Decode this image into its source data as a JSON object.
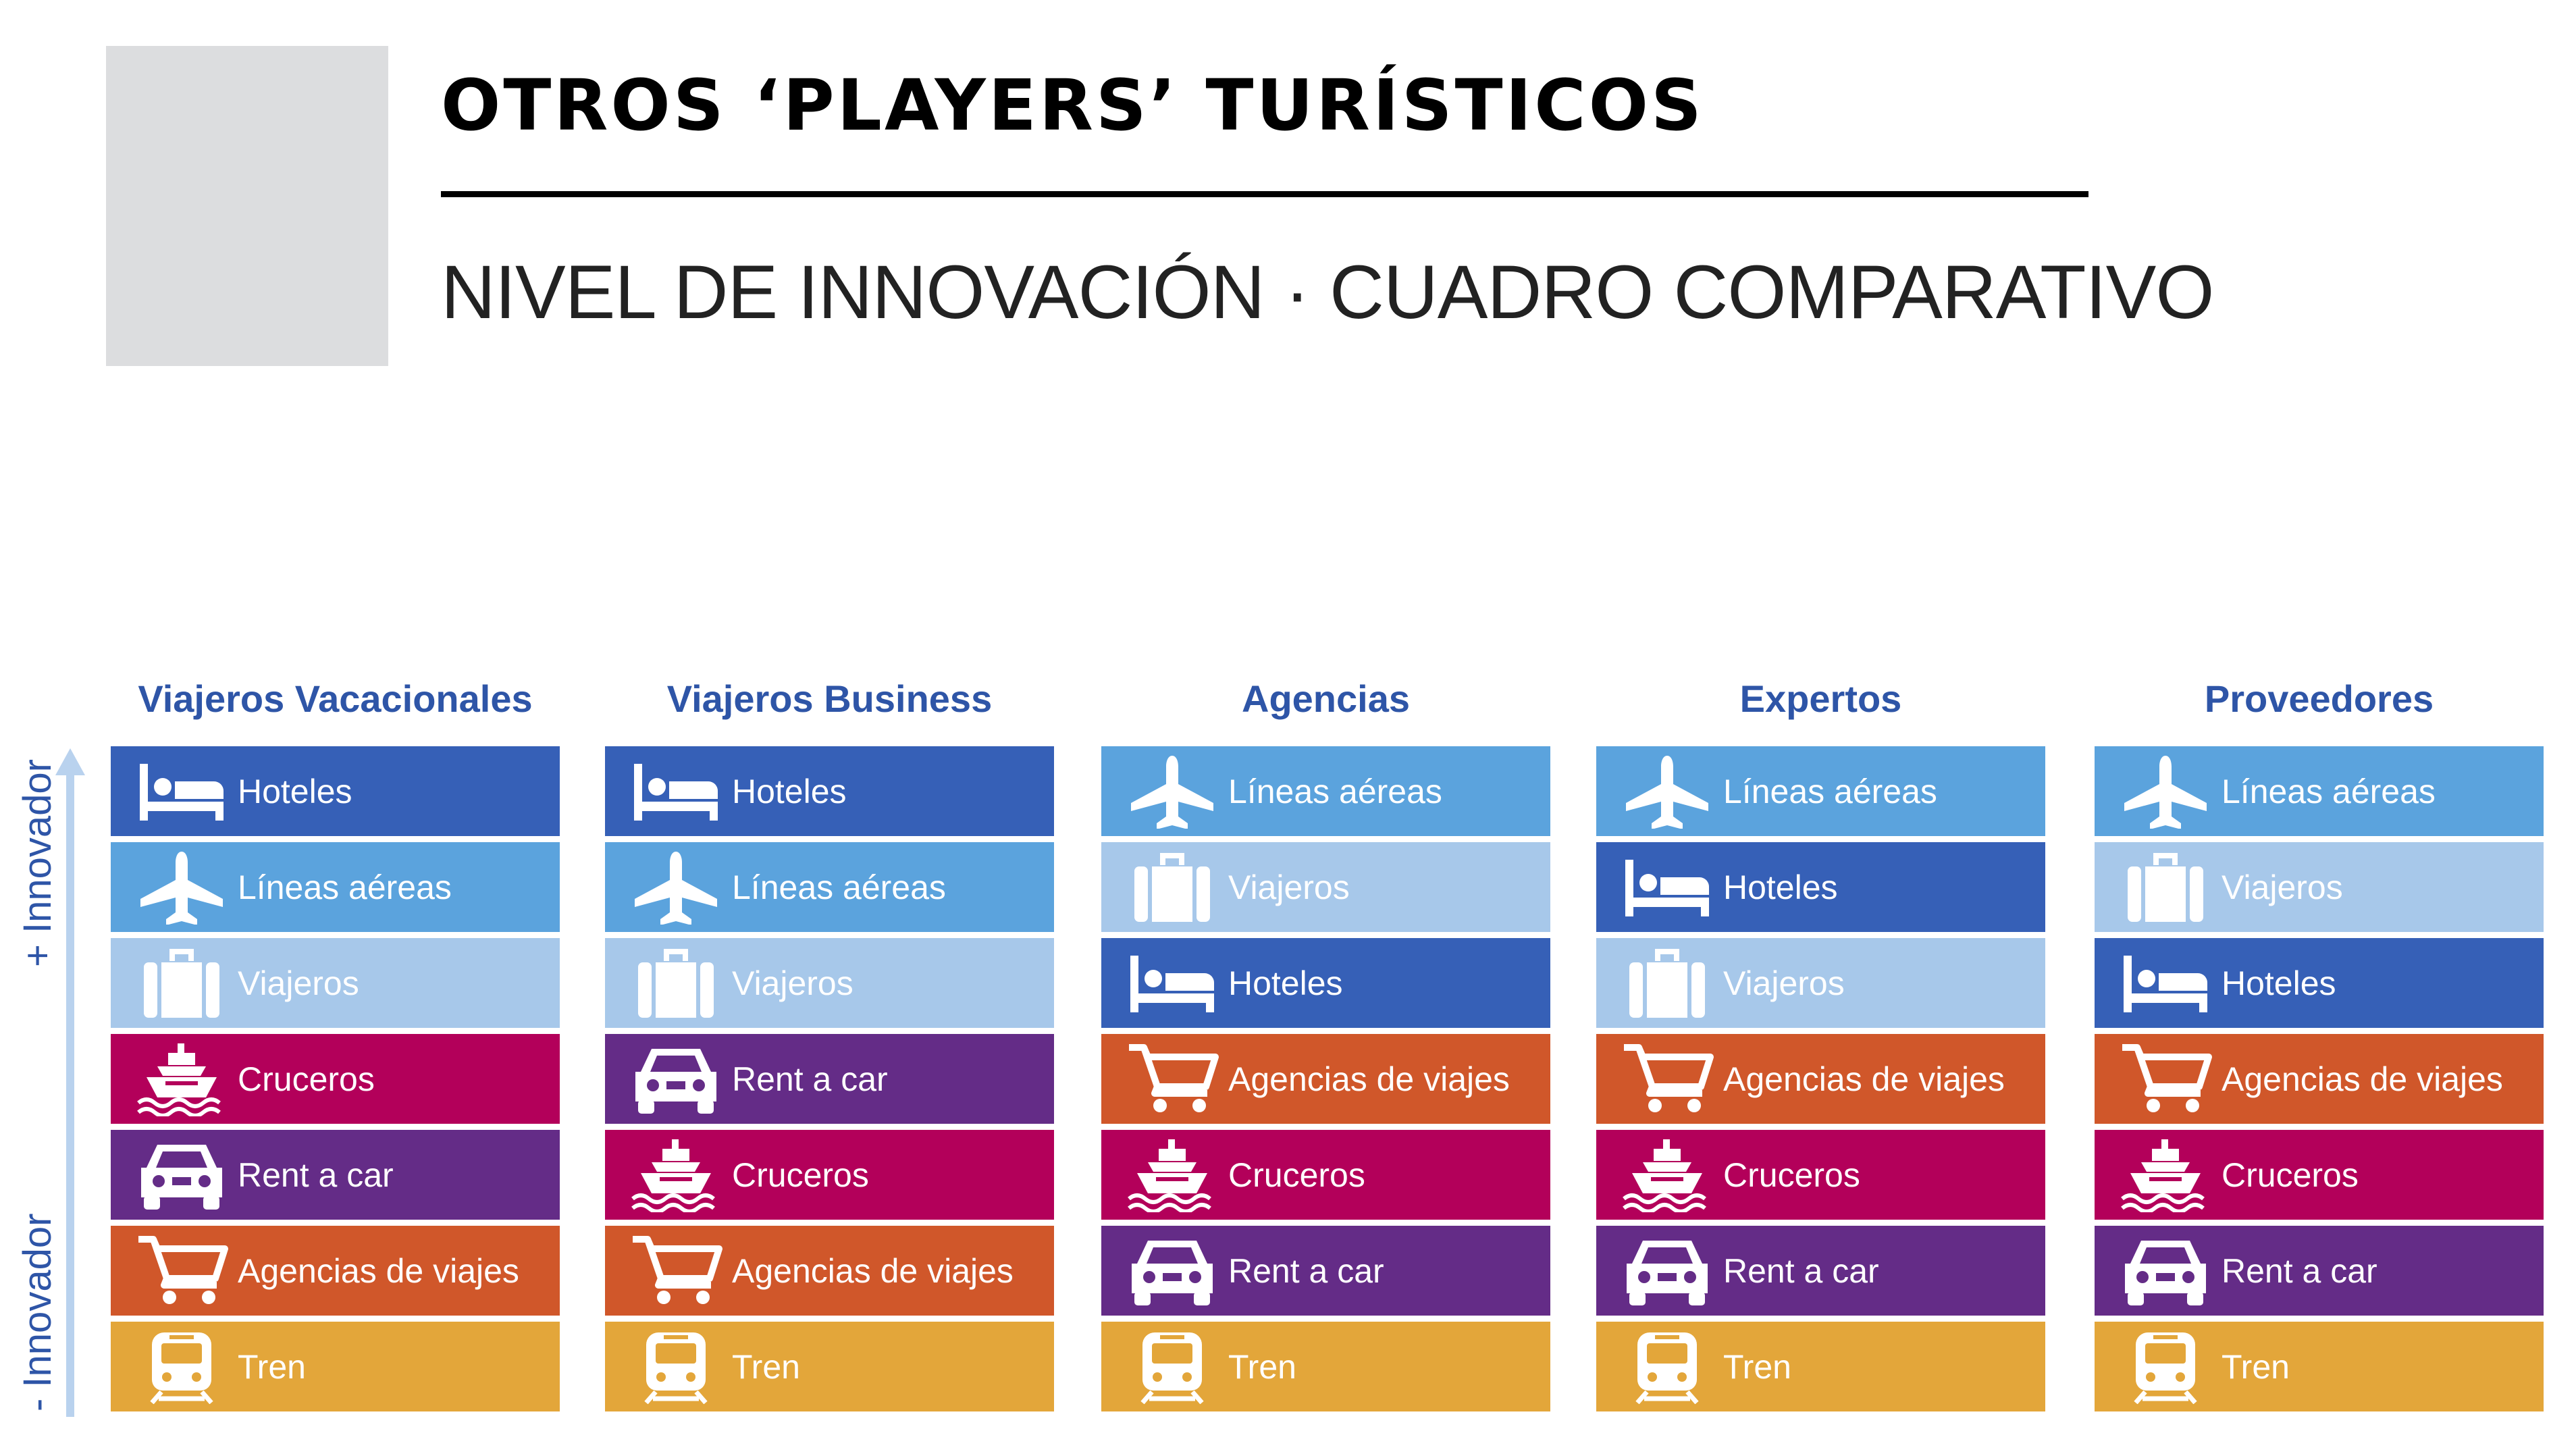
{
  "header": {
    "title": "OTROS ‘PLAYERS’ TURÍSTICOS",
    "subtitle": "NIVEL DE INNOVACIÓN  · CUADRO COMPARATIVO"
  },
  "axis": {
    "top_label": "+ Innovador",
    "bottom_label": "- Innovador"
  },
  "categories": {
    "hoteles": {
      "label": "Hoteles",
      "icon": "bed-icon",
      "color": "#3660b7"
    },
    "lineas": {
      "label": "Líneas aéreas",
      "icon": "airplane-icon",
      "color": "#5ba3dd"
    },
    "viajeros": {
      "label": "Viajeros",
      "icon": "luggage-icon",
      "color": "#a7c8ea"
    },
    "cruceros": {
      "label": "Cruceros",
      "icon": "ship-icon",
      "color": "#b3005a"
    },
    "rentacar": {
      "label": "Rent a car",
      "icon": "car-icon",
      "color": "#642c87"
    },
    "agencias": {
      "label": "Agencias de viajes",
      "icon": "cart-icon",
      "color": "#d0572a"
    },
    "tren": {
      "label": "Tren",
      "icon": "train-icon",
      "color": "#e3a63a"
    }
  },
  "columns": [
    {
      "title": "Viajeros Vacacionales",
      "rows": [
        "hoteles",
        "lineas",
        "viajeros",
        "cruceros",
        "rentacar",
        "agencias",
        "tren"
      ]
    },
    {
      "title": "Viajeros Business",
      "rows": [
        "hoteles",
        "lineas",
        "viajeros",
        "rentacar",
        "cruceros",
        "agencias",
        "tren"
      ]
    },
    {
      "title": "Agencias",
      "rows": [
        "lineas",
        "viajeros",
        "hoteles",
        "agencias",
        "cruceros",
        "rentacar",
        "tren"
      ]
    },
    {
      "title": "Expertos",
      "rows": [
        "lineas",
        "hoteles",
        "viajeros",
        "agencias",
        "cruceros",
        "rentacar",
        "tren"
      ]
    },
    {
      "title": "Proveedores",
      "rows": [
        "lineas",
        "viajeros",
        "hoteles",
        "agencias",
        "cruceros",
        "rentacar",
        "tren"
      ]
    }
  ]
}
